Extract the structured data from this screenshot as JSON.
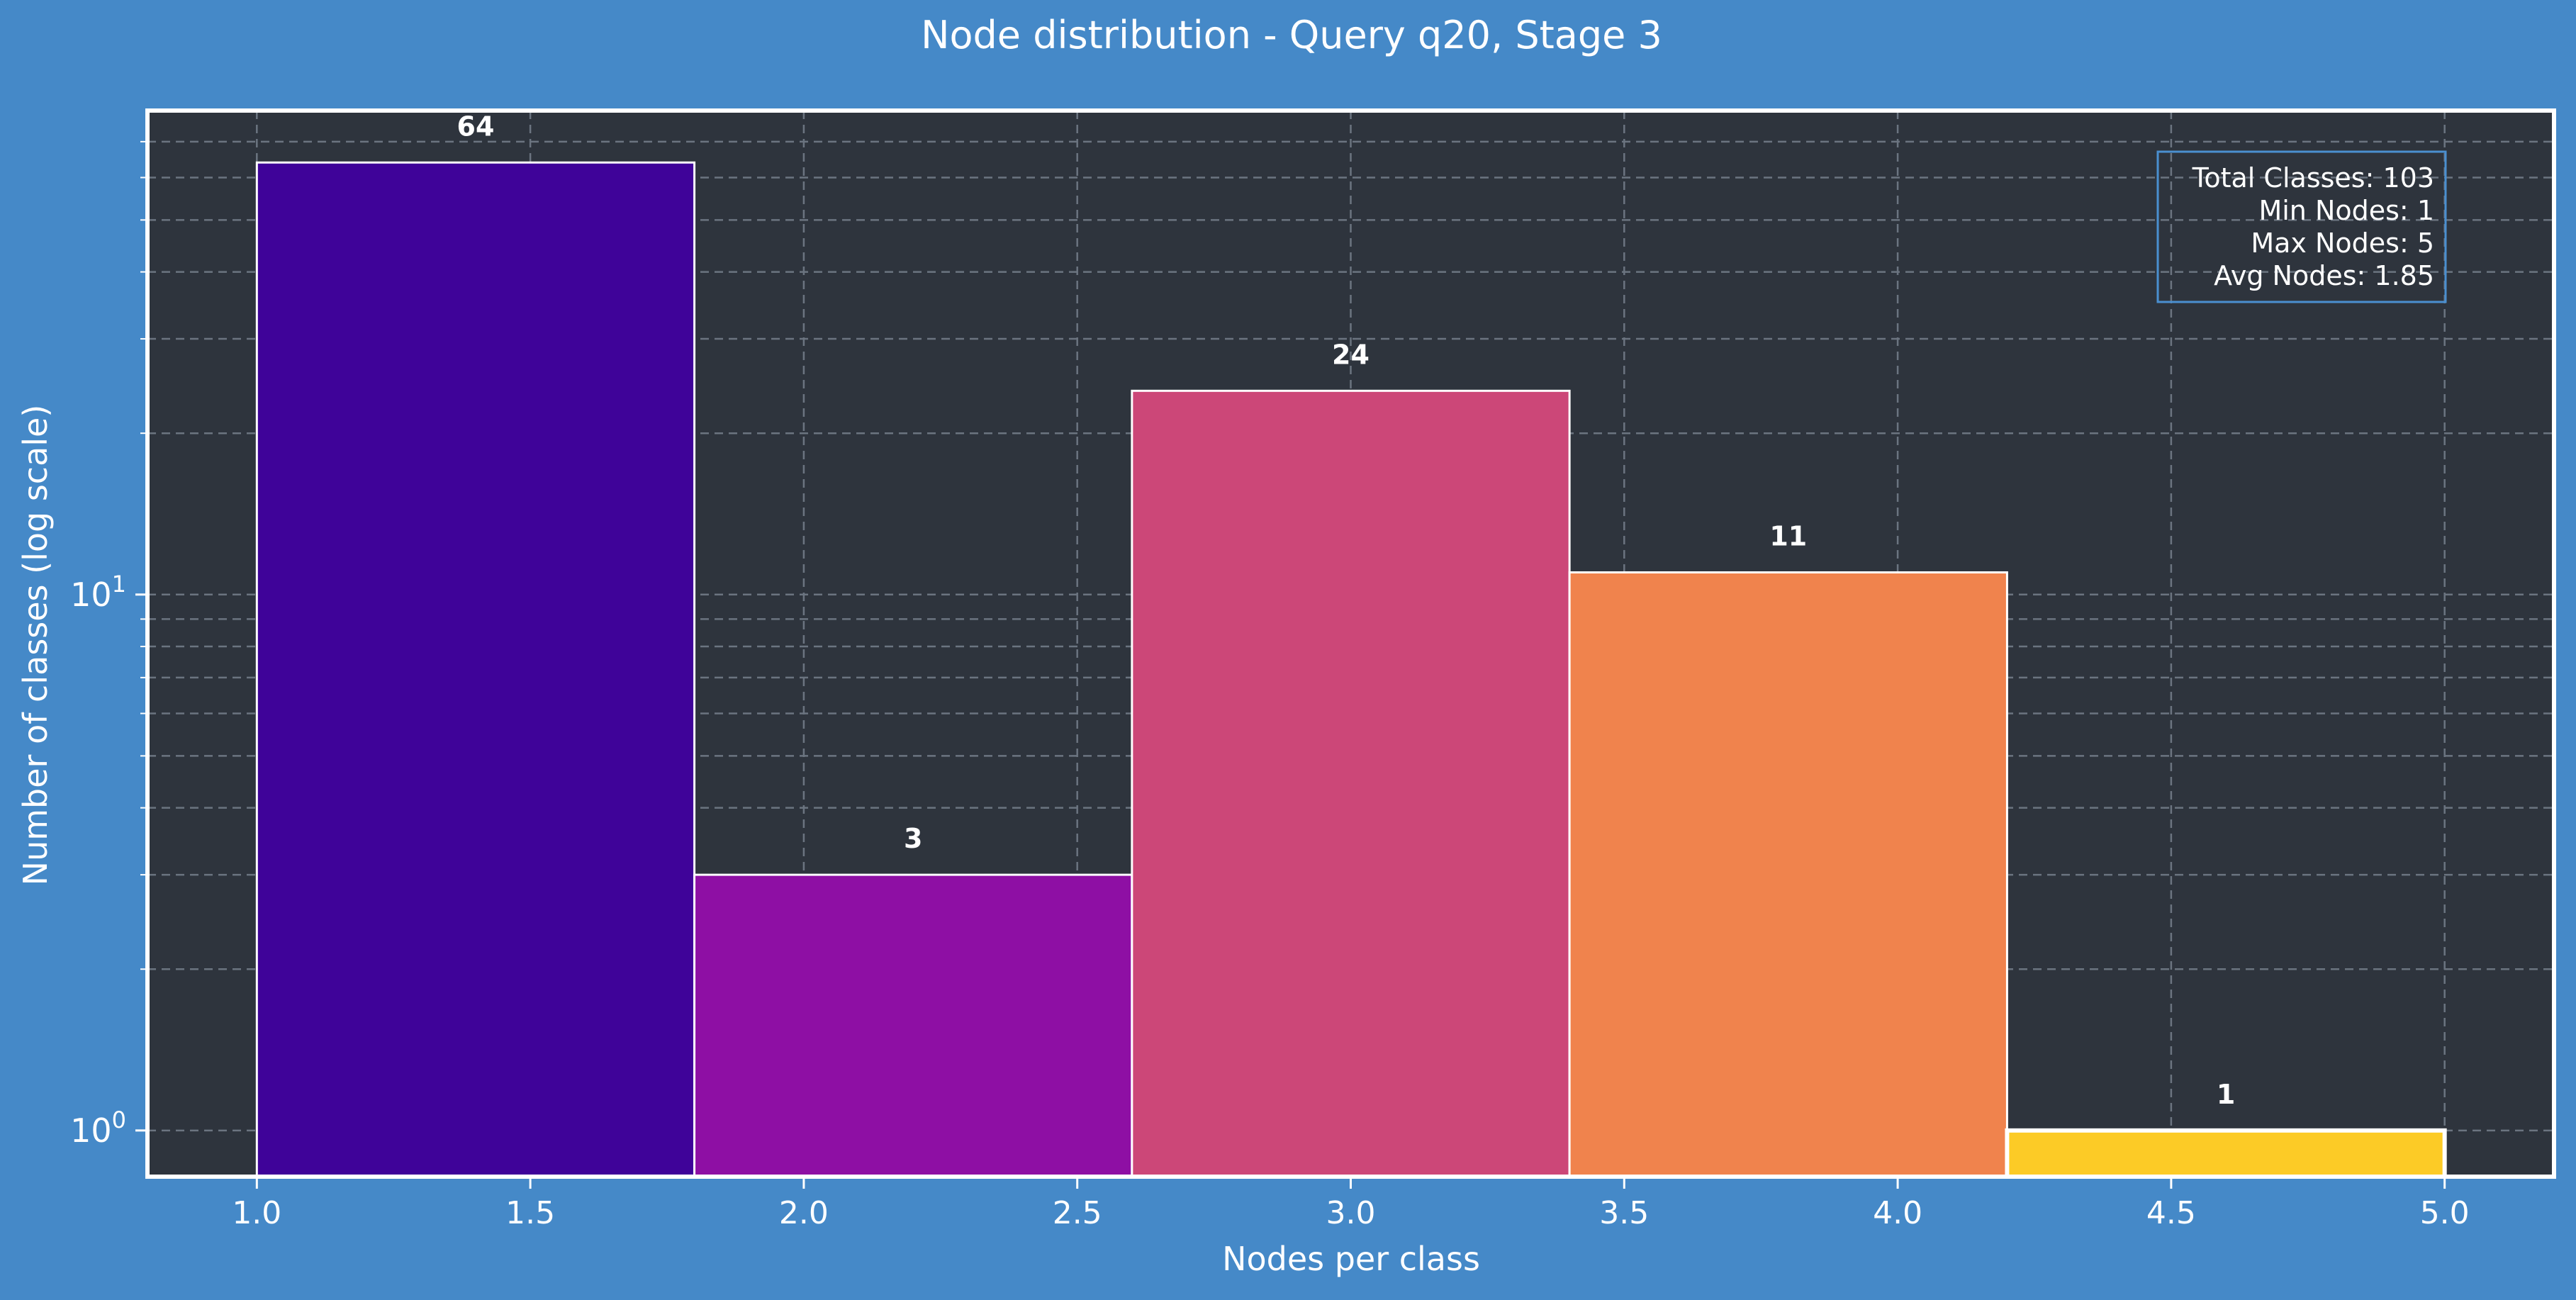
{
  "chart_data": {
    "type": "bar",
    "title": "Node distribution - Query q20, Stage 3",
    "xlabel": "Nodes per class",
    "ylabel": "Number of classes (log scale)",
    "y_scale": "log",
    "xlim": [
      0.8,
      5.2
    ],
    "ylim": [
      0.82,
      80
    ],
    "x_ticks": [
      1.0,
      1.5,
      2.0,
      2.5,
      3.0,
      3.5,
      4.0,
      4.5,
      5.0
    ],
    "x_tick_labels": [
      "1.0",
      "1.5",
      "2.0",
      "2.5",
      "3.0",
      "3.5",
      "4.0",
      "4.5",
      "5.0"
    ],
    "y_ticks": [
      {
        "value": 1,
        "base": "10",
        "exp": "0"
      },
      {
        "value": 10,
        "base": "10",
        "exp": "1"
      }
    ],
    "bins": [
      {
        "x0": 1.0,
        "x1": 1.8,
        "value": 64,
        "label": "64",
        "color": "#3f0399"
      },
      {
        "x0": 1.8,
        "x1": 2.6,
        "value": 3,
        "label": "3",
        "color": "#8e0fa4"
      },
      {
        "x0": 2.6,
        "x1": 3.4,
        "value": 24,
        "label": "24",
        "color": "#cc4778"
      },
      {
        "x0": 3.4,
        "x1": 4.2,
        "value": 11,
        "label": "11",
        "color": "#f0834d"
      },
      {
        "x0": 4.2,
        "x1": 5.0,
        "value": 1,
        "label": "1",
        "color": "#fccb26"
      }
    ],
    "grid": true,
    "stats_box": {
      "position": "top-right",
      "lines": [
        "Total Classes: 103",
        "Min Nodes: 1",
        "Max Nodes: 5",
        "Avg Nodes: 1.85"
      ]
    },
    "colors": {
      "figure_bg": "#4589c8",
      "axes_bg": "#2e343d",
      "grid": "#6b7480",
      "text": "#ffffff",
      "stats_border": "#4a8fd0"
    }
  }
}
